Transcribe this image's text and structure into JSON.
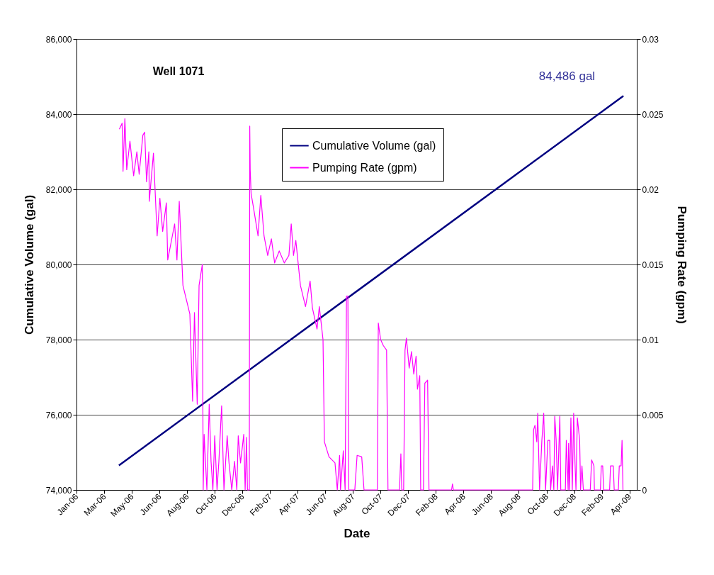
{
  "chart_data": {
    "type": "line",
    "title": "Well 1071",
    "xlabel": "Date",
    "ylabel": "Cumulative Volume (gal)",
    "y2label": "Pumping Rate (gpm)",
    "xlim": [
      "2006-01-01",
      "2009-05-01"
    ],
    "xticks": [
      {
        "value": "2006-01-01",
        "label": "Jan-06"
      },
      {
        "value": "2006-03-02",
        "label": "Mar-06"
      },
      {
        "value": "2006-05-01",
        "label": "May-06"
      },
      {
        "value": "2006-06-30",
        "label": "Jun-06"
      },
      {
        "value": "2006-08-29",
        "label": "Aug-06"
      },
      {
        "value": "2006-10-28",
        "label": "Oct-06"
      },
      {
        "value": "2006-12-27",
        "label": "Dec-06"
      },
      {
        "value": "2007-02-25",
        "label": "Feb-07"
      },
      {
        "value": "2007-04-26",
        "label": "Apr-07"
      },
      {
        "value": "2007-06-25",
        "label": "Jun-07"
      },
      {
        "value": "2007-08-24",
        "label": "Aug-07"
      },
      {
        "value": "2007-10-23",
        "label": "Oct-07"
      },
      {
        "value": "2007-12-22",
        "label": "Dec-07"
      },
      {
        "value": "2008-02-20",
        "label": "Feb-08"
      },
      {
        "value": "2008-04-20",
        "label": "Apr-08"
      },
      {
        "value": "2008-06-19",
        "label": "Jun-08"
      },
      {
        "value": "2008-08-18",
        "label": "Aug-08"
      },
      {
        "value": "2008-10-17",
        "label": "Oct-08"
      },
      {
        "value": "2008-12-16",
        "label": "Dec-08"
      },
      {
        "value": "2009-02-14",
        "label": "Feb-09"
      },
      {
        "value": "2009-04-15",
        "label": "Apr-09"
      }
    ],
    "ylim": [
      74000,
      86000
    ],
    "yticks": [
      {
        "value": 74000,
        "label": "74,000"
      },
      {
        "value": 76000,
        "label": "76,000"
      },
      {
        "value": 78000,
        "label": "78,000"
      },
      {
        "value": 80000,
        "label": "80,000"
      },
      {
        "value": 82000,
        "label": "82,000"
      },
      {
        "value": 84000,
        "label": "84,000"
      },
      {
        "value": 86000,
        "label": "86,000"
      }
    ],
    "y2lim": [
      0,
      0.03
    ],
    "y2ticks": [
      0,
      0.005,
      0.01,
      0.015,
      0.02,
      0.025,
      0.03
    ],
    "grid": "y",
    "legend": "top",
    "line_style": "solid",
    "marker": "none",
    "annotations": [
      {
        "text": "84,486 gal",
        "x": "2009-04-02",
        "y": 84486
      }
    ],
    "series": [
      {
        "name": "Cumulative Volume (gal)",
        "color": "#000080",
        "x": [
          "2006-04-03",
          "2009-04-02"
        ],
        "values": [
          74650,
          84486
        ]
      },
      {
        "name": "Pumping Rate (gpm)",
        "color": "#ff00ff",
        "axis": "y2",
        "x": [
          "2006-04-04",
          "2006-04-10",
          "2006-04-12",
          "2006-04-16",
          "2006-04-20",
          "2006-04-27",
          "2006-05-05",
          "2006-05-12",
          "2006-05-17",
          "2006-05-25",
          "2006-05-29",
          "2006-06-02",
          "2006-06-07",
          "2006-06-08",
          "2006-06-17",
          "2006-06-25",
          "2006-07-01",
          "2006-07-07",
          "2006-07-15",
          "2006-07-18",
          "2006-08-02",
          "2006-08-07",
          "2006-08-12",
          "2006-08-20",
          "2006-09-04",
          "2006-09-10",
          "2006-09-14",
          "2006-09-20",
          "2006-09-24",
          "2006-10-01",
          "2006-10-03",
          "2006-10-05",
          "2006-10-11",
          "2006-10-16",
          "2006-10-20",
          "2006-10-24",
          "2006-10-28",
          "2006-11-02",
          "2006-11-06",
          "2006-11-12",
          "2006-11-17",
          "2006-11-24",
          "2006-11-28",
          "2006-12-04",
          "2006-12-10",
          "2006-12-15",
          "2006-12-18",
          "2006-12-23",
          "2006-12-30",
          "2007-01-02",
          "2007-01-05",
          "2007-01-07",
          "2007-01-11",
          "2007-01-12",
          "2007-01-13",
          "2007-01-15",
          "2007-01-20",
          "2007-01-30",
          "2007-02-05",
          "2007-02-12",
          "2007-02-20",
          "2007-02-28",
          "2007-03-07",
          "2007-03-17",
          "2007-03-28",
          "2007-04-07",
          "2007-04-12",
          "2007-04-17",
          "2007-04-22",
          "2007-05-02",
          "2007-05-13",
          "2007-05-23",
          "2007-05-28",
          "2007-06-07",
          "2007-06-12",
          "2007-06-20",
          "2007-06-23",
          "2007-07-03",
          "2007-07-16",
          "2007-07-21",
          "2007-07-26",
          "2007-07-28",
          "2007-08-03",
          "2007-08-07",
          "2007-08-10",
          "2007-08-13",
          "2007-08-15",
          "2007-08-28",
          "2007-09-02",
          "2007-09-12",
          "2007-09-17",
          "2007-10-16",
          "2007-10-18",
          "2007-10-23",
          "2007-10-29",
          "2007-11-05",
          "2007-11-08",
          "2007-12-03",
          "2007-12-06",
          "2007-12-08",
          "2007-12-12",
          "2007-12-15",
          "2007-12-18",
          "2007-12-24",
          "2007-12-29",
          "2008-01-03",
          "2008-01-08",
          "2008-01-11",
          "2008-01-16",
          "2008-01-18",
          "2008-01-24",
          "2008-01-27",
          "2008-02-02",
          "2008-02-05",
          "2008-03-25",
          "2008-03-27",
          "2008-03-29",
          "2008-09-17",
          "2008-09-19",
          "2008-09-22",
          "2008-09-26",
          "2008-09-28",
          "2008-10-02",
          "2008-10-07",
          "2008-10-11",
          "2008-10-15",
          "2008-10-20",
          "2008-10-24",
          "2008-10-26",
          "2008-10-30",
          "2008-11-02",
          "2008-11-04",
          "2008-11-07",
          "2008-11-10",
          "2008-11-15",
          "2008-11-17",
          "2008-11-27",
          "2008-11-29",
          "2008-12-03",
          "2008-12-04",
          "2008-12-06",
          "2008-12-09",
          "2008-12-12",
          "2008-12-15",
          "2008-12-18",
          "2008-12-20",
          "2008-12-23",
          "2008-12-28",
          "2008-12-30",
          "2009-01-02",
          "2009-01-05",
          "2009-01-20",
          "2009-01-23",
          "2009-01-28",
          "2009-01-29",
          "2009-02-11",
          "2009-02-13",
          "2009-02-16",
          "2009-02-18",
          "2009-03-03",
          "2009-03-05",
          "2009-03-11",
          "2009-03-13",
          "2009-03-22",
          "2009-03-24",
          "2009-03-28",
          "2009-03-30",
          "2009-04-01"
        ],
        "values": [
          0.024,
          0.0244,
          0.0212,
          0.0247,
          0.0213,
          0.0232,
          0.0209,
          0.0225,
          0.021,
          0.0236,
          0.0238,
          0.0205,
          0.0225,
          0.0192,
          0.0224,
          0.0169,
          0.0194,
          0.0172,
          0.0191,
          0.0153,
          0.0177,
          0.0153,
          0.0192,
          0.0136,
          0.0117,
          0.0059,
          0.0118,
          0.0057,
          0.0136,
          0.015,
          0,
          0.0037,
          0,
          0.0057,
          0.0019,
          0,
          0.0036,
          0,
          0.0019,
          0.0056,
          0,
          0.0036,
          0.0018,
          0,
          0.0019,
          0,
          0.0036,
          0.0018,
          0.0037,
          0,
          0.0035,
          0,
          0,
          0.0242,
          0.0213,
          0.0197,
          0.0188,
          0.0169,
          0.0196,
          0.0169,
          0.0156,
          0.0167,
          0.0151,
          0.0159,
          0.0151,
          0.0156,
          0.0177,
          0.0156,
          0.0166,
          0.0136,
          0.0122,
          0.0139,
          0.0121,
          0.0107,
          0.0122,
          0.01,
          0.0032,
          0.0022,
          0.0018,
          0,
          0.0023,
          0,
          0.0026,
          0,
          0.0129,
          0.0129,
          0,
          0,
          0.0023,
          0.0022,
          0,
          0,
          0.0111,
          0.01,
          0.0096,
          0.0093,
          0,
          0,
          0.0024,
          0,
          0,
          0.0093,
          0.0101,
          0.0081,
          0.0092,
          0.0077,
          0.0089,
          0.0067,
          0.0076,
          0,
          0,
          0.0071,
          0.0073,
          0,
          0,
          0.0004,
          0,
          0,
          0.004,
          0.0043,
          0.0032,
          0.0051,
          0,
          0.0033,
          0.0051,
          0,
          0.0033,
          0.0033,
          0,
          0.0016,
          0,
          0.0049,
          0.0033,
          0,
          0.0049,
          0,
          0,
          0.0033,
          0,
          0.0031,
          0,
          0.0048,
          0,
          0.0051,
          0.0017,
          0,
          0.0048,
          0.0033,
          0,
          0.0016,
          0,
          0,
          0.002,
          0.0016,
          0,
          0,
          0.0016,
          0.0016,
          0,
          0,
          0.0016,
          0.0016,
          0,
          0,
          0.0016,
          0.0016,
          0.0033,
          0
        ]
      }
    ]
  }
}
